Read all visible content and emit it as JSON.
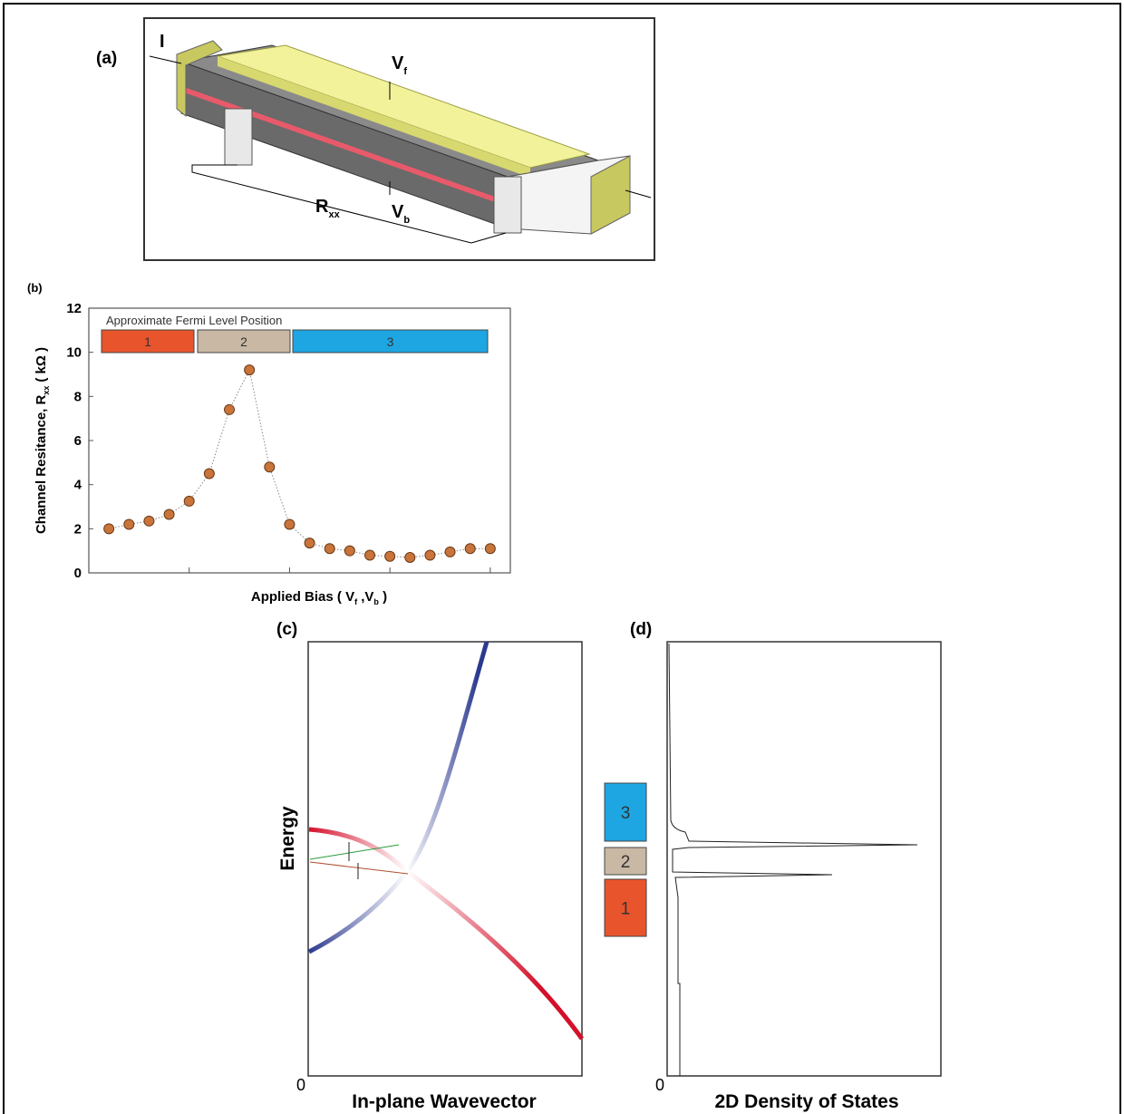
{
  "panel_a": {
    "label": "(a)",
    "current": "I",
    "front_gate": {
      "main": "V",
      "sub": "f"
    },
    "back_gate": {
      "main": "V",
      "sub": "b"
    },
    "resistance": {
      "main": "R",
      "sub": "xx"
    }
  },
  "chart_data": {
    "type": "scatter",
    "panel_label": "(b)",
    "y_label": {
      "text": "Channel Resitance, R",
      "sub": "xx",
      "unit": "( kΩ )"
    },
    "x_label": {
      "start": "Applied Bias ( V",
      "sub1": "f",
      "mid": " ,V",
      "sub2": "b",
      "end": " )"
    },
    "x": [
      1,
      2,
      3,
      4,
      5,
      6,
      7,
      8,
      9,
      10,
      11,
      12,
      13,
      14,
      15,
      16,
      17,
      18,
      19,
      20
    ],
    "series": [
      {
        "color": "#c8743a",
        "values": [
          2.0,
          2.2,
          2.35,
          2.65,
          3.25,
          4.5,
          7.4,
          9.2,
          4.8,
          2.2,
          1.35,
          1.1,
          1.0,
          0.8,
          0.75,
          0.7,
          0.8,
          0.95,
          1.1,
          1.1
        ]
      }
    ],
    "xlim": [
      0,
      21
    ],
    "xticks": [
      5,
      10,
      15,
      20
    ],
    "ylim": [
      0,
      12
    ],
    "yticks": [
      0,
      2,
      4,
      6,
      8,
      10,
      12
    ],
    "fermi_legend": {
      "title": "Approximate Fermi Level Position",
      "regions": [
        {
          "label": "1",
          "color": "#e8542c"
        },
        {
          "label": "2",
          "color": "#c8b8a4"
        },
        {
          "label": "3",
          "color": "#1ea6e2"
        }
      ]
    }
  },
  "panel_c": {
    "label": "(c)",
    "y_label": "Energy",
    "x_label": "In-plane Wavevector",
    "origin": "0"
  },
  "panel_d": {
    "label": "(d)",
    "x_label": "2D Density of States",
    "origin": "0",
    "levels": [
      {
        "label": "3",
        "color": "#1ea6e2"
      },
      {
        "label": "2",
        "color": "#c8b8a4"
      },
      {
        "label": "1",
        "color": "#e8542c"
      }
    ]
  }
}
